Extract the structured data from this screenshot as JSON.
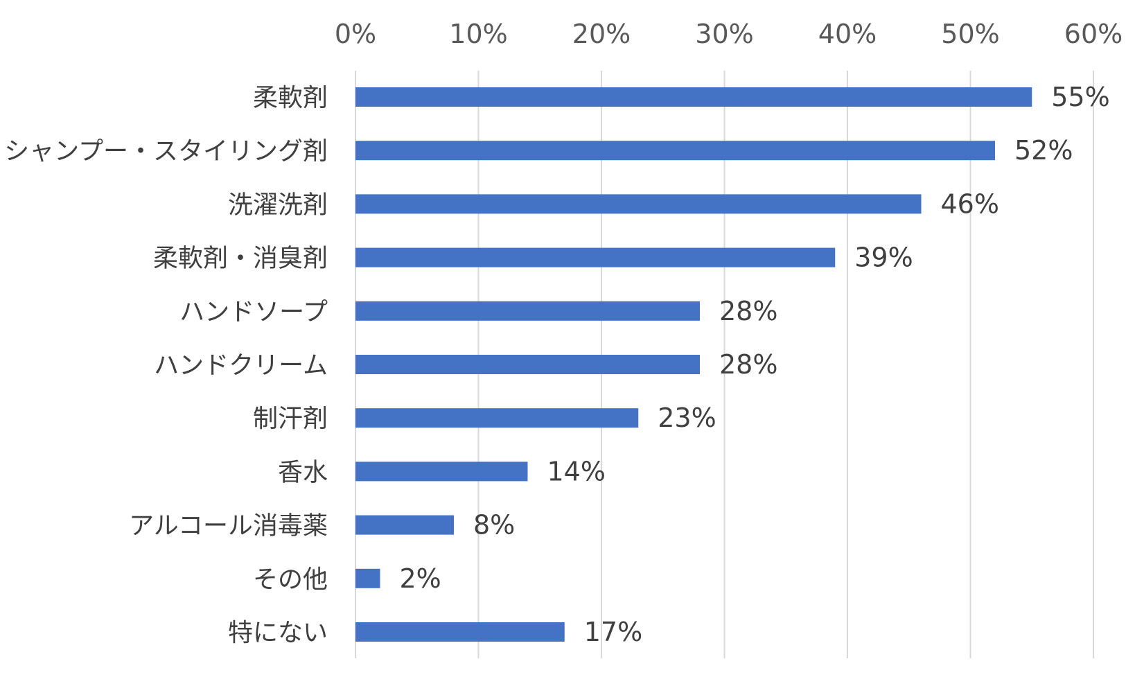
{
  "chart_data": {
    "type": "bar",
    "orientation": "horizontal",
    "categories": [
      "柔軟剤",
      "シャンプー・スタイリング剤",
      "洗濯洗剤",
      "柔軟剤・消臭剤",
      "ハンドソープ",
      "ハンドクリーム",
      "制汗剤",
      "香水",
      "アルコール消毒薬",
      "その他",
      "特にない"
    ],
    "values": [
      55,
      52,
      46,
      39,
      28,
      28,
      23,
      14,
      8,
      2,
      17
    ],
    "data_labels": [
      "55%",
      "52%",
      "46%",
      "39%",
      "28%",
      "28%",
      "23%",
      "14%",
      "8%",
      "2%",
      "17%"
    ],
    "x_ticks": [
      "0%",
      "10%",
      "20%",
      "30%",
      "40%",
      "50%",
      "60%"
    ],
    "xlim": [
      0,
      60
    ],
    "x_axis_position": "top",
    "grid": true,
    "bar_color": "#4472c4",
    "title": "",
    "xlabel": "",
    "ylabel": ""
  }
}
